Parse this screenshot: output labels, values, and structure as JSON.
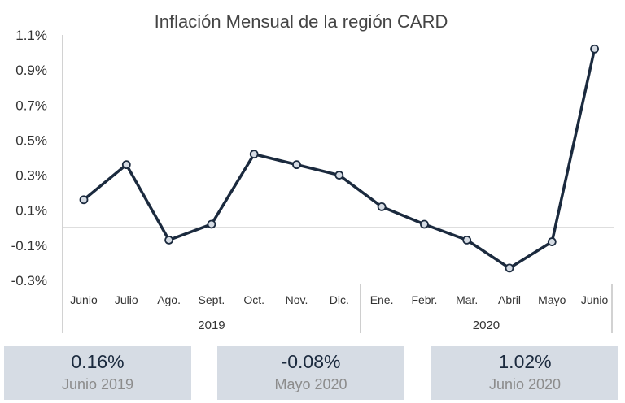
{
  "chart_data": {
    "type": "line",
    "title": "Inflación Mensual de la región CARD",
    "xlabel": "",
    "ylabel": "",
    "categories": [
      "Junio",
      "Julio",
      "Ago.",
      "Sept.",
      "Oct.",
      "Nov.",
      "Dic.",
      "Ene.",
      "Febr.",
      "Mar.",
      "Abril",
      "Mayo",
      "Junio"
    ],
    "year_groups": [
      {
        "label": "2019",
        "start": 0,
        "end": 6
      },
      {
        "label": "2020",
        "start": 7,
        "end": 12
      }
    ],
    "series": [
      {
        "values": [
          0.16,
          0.36,
          -0.07,
          0.02,
          0.42,
          0.36,
          0.3,
          0.12,
          0.02,
          -0.07,
          -0.23,
          -0.08,
          1.02
        ]
      }
    ],
    "yticks": [
      "1.1%",
      "0.9%",
      "0.7%",
      "0.5%",
      "0.3%",
      "0.1%",
      "-0.1%",
      "-0.3%"
    ],
    "ytick_values": [
      1.1,
      0.9,
      0.7,
      0.5,
      0.3,
      0.1,
      -0.1,
      -0.3
    ],
    "ylim": [
      -0.3,
      1.1
    ],
    "grid": false,
    "colors": {
      "line": "#1b2a3e",
      "marker_fill": "#d6dce4",
      "zero_line": "#a6a6a6",
      "axis": "#a6a6a6"
    }
  },
  "cards": [
    {
      "value": "0.16%",
      "label": "Junio 2019"
    },
    {
      "value": "-0.08%",
      "label": "Mayo 2020"
    },
    {
      "value": "1.02%",
      "label": "Junio 2020"
    }
  ]
}
